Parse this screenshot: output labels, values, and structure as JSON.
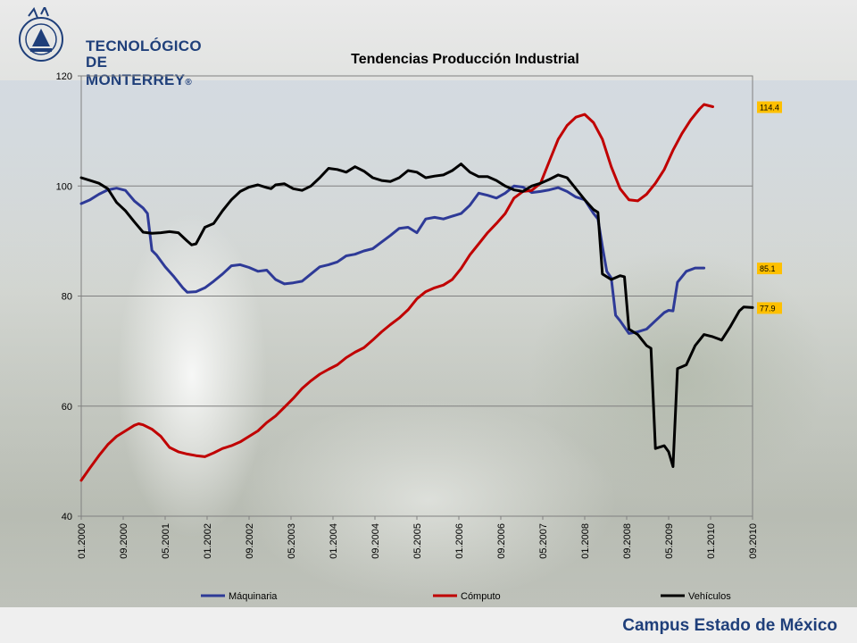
{
  "header": {
    "logo_line1": "TECNOLÓGICO",
    "logo_line2": "DE MONTERREY",
    "logo_mark": "®"
  },
  "footer": {
    "campus": "Campus Estado de México"
  },
  "chart_data": {
    "type": "line",
    "title": "Tendencias Producción Industrial",
    "xlabel": "",
    "ylabel": "",
    "ylim": [
      40,
      120
    ],
    "yticks": [
      40,
      60,
      80,
      100,
      120
    ],
    "grid": true,
    "legend_position": "bottom",
    "xtick_labels": [
      "01.2000",
      "09.2000",
      "05.2001",
      "01.2002",
      "09.2002",
      "05.2003",
      "01.2004",
      "09.2004",
      "05.2005",
      "01.2006",
      "09.2006",
      "05.2007",
      "01.2008",
      "09.2008",
      "05.2009",
      "01.2010",
      "09.2010"
    ],
    "x_index_range": [
      0,
      128
    ],
    "series": [
      {
        "name": "Máquinaria",
        "color": "#2e3a97",
        "end_label": "85.1",
        "values": [
          [
            0,
            96.8
          ],
          [
            2,
            97.5
          ],
          [
            4,
            98.5
          ],
          [
            6,
            99.3
          ],
          [
            8,
            99.6
          ],
          [
            10,
            99.2
          ],
          [
            12,
            97.3
          ],
          [
            14,
            96
          ],
          [
            15,
            95
          ],
          [
            16,
            88.3
          ],
          [
            17,
            87.5
          ],
          [
            19,
            85.3
          ],
          [
            21,
            83.5
          ],
          [
            23,
            81.5
          ],
          [
            24,
            80.7
          ],
          [
            26,
            80.8
          ],
          [
            28,
            81.5
          ],
          [
            30,
            82.7
          ],
          [
            32,
            84
          ],
          [
            34,
            85.5
          ],
          [
            36,
            85.7
          ],
          [
            38,
            85.2
          ],
          [
            40,
            84.5
          ],
          [
            42,
            84.7
          ],
          [
            44,
            83
          ],
          [
            46,
            82.2
          ],
          [
            48,
            82.4
          ],
          [
            50,
            82.7
          ],
          [
            52,
            84
          ],
          [
            54,
            85.3
          ],
          [
            56,
            85.7
          ],
          [
            58,
            86.2
          ],
          [
            60,
            87.3
          ],
          [
            62,
            87.6
          ],
          [
            64,
            88.2
          ],
          [
            66,
            88.6
          ],
          [
            68,
            89.8
          ],
          [
            70,
            91
          ],
          [
            72,
            92.3
          ],
          [
            74,
            92.5
          ],
          [
            76,
            91.5
          ],
          [
            78,
            94
          ],
          [
            80,
            94.3
          ],
          [
            82,
            94
          ],
          [
            84,
            94.5
          ],
          [
            86,
            95
          ],
          [
            88,
            96.5
          ],
          [
            90,
            98.7
          ],
          [
            92,
            98.3
          ],
          [
            94,
            97.8
          ],
          [
            96,
            98.7
          ],
          [
            98,
            100
          ],
          [
            100,
            99.8
          ],
          [
            102,
            98.8
          ],
          [
            104,
            99
          ],
          [
            106,
            99.3
          ],
          [
            108,
            99.7
          ],
          [
            110,
            99
          ],
          [
            112,
            98
          ],
          [
            114,
            97.5
          ],
          [
            116,
            95
          ],
          [
            117,
            94
          ],
          [
            118,
            89
          ],
          [
            119,
            84.5
          ],
          [
            120,
            83.3
          ],
          [
            121,
            76.5
          ],
          [
            122,
            75.5
          ],
          [
            124,
            73.2
          ],
          [
            126,
            73.5
          ],
          [
            128,
            74
          ],
          [
            130,
            75.5
          ],
          [
            132,
            77
          ],
          [
            133,
            77.4
          ],
          [
            134,
            77.3
          ],
          [
            135,
            82.5
          ],
          [
            137,
            84.5
          ],
          [
            139,
            85.1
          ],
          [
            141,
            85.1
          ]
        ]
      },
      {
        "name": "Cómputo",
        "color": "#c00000",
        "end_label": "114.4",
        "values": [
          [
            0,
            46.5
          ],
          [
            2,
            48.8
          ],
          [
            4,
            51
          ],
          [
            6,
            53
          ],
          [
            8,
            54.5
          ],
          [
            10,
            55.5
          ],
          [
            12,
            56.5
          ],
          [
            13,
            56.8
          ],
          [
            14,
            56.6
          ],
          [
            16,
            55.8
          ],
          [
            18,
            54.5
          ],
          [
            20,
            52.5
          ],
          [
            22,
            51.7
          ],
          [
            24,
            51.3
          ],
          [
            26,
            51
          ],
          [
            28,
            50.8
          ],
          [
            30,
            51.5
          ],
          [
            32,
            52.3
          ],
          [
            34,
            52.8
          ],
          [
            36,
            53.5
          ],
          [
            38,
            54.5
          ],
          [
            40,
            55.5
          ],
          [
            42,
            57
          ],
          [
            44,
            58.2
          ],
          [
            46,
            59.8
          ],
          [
            48,
            61.4
          ],
          [
            50,
            63.2
          ],
          [
            52,
            64.6
          ],
          [
            54,
            65.8
          ],
          [
            56,
            66.7
          ],
          [
            58,
            67.5
          ],
          [
            60,
            68.8
          ],
          [
            62,
            69.8
          ],
          [
            64,
            70.6
          ],
          [
            66,
            72
          ],
          [
            68,
            73.5
          ],
          [
            70,
            74.8
          ],
          [
            72,
            76
          ],
          [
            74,
            77.5
          ],
          [
            76,
            79.5
          ],
          [
            78,
            80.8
          ],
          [
            80,
            81.5
          ],
          [
            82,
            82
          ],
          [
            84,
            83
          ],
          [
            86,
            85
          ],
          [
            88,
            87.5
          ],
          [
            90,
            89.5
          ],
          [
            92,
            91.5
          ],
          [
            94,
            93.2
          ],
          [
            96,
            95
          ],
          [
            98,
            97.8
          ],
          [
            100,
            99
          ],
          [
            102,
            99.2
          ],
          [
            104,
            100.5
          ],
          [
            106,
            104.5
          ],
          [
            108,
            108.5
          ],
          [
            110,
            111
          ],
          [
            112,
            112.5
          ],
          [
            114,
            113
          ],
          [
            116,
            111.5
          ],
          [
            118,
            108.5
          ],
          [
            120,
            103.5
          ],
          [
            122,
            99.5
          ],
          [
            124,
            97.5
          ],
          [
            126,
            97.3
          ],
          [
            128,
            98.5
          ],
          [
            130,
            100.5
          ],
          [
            132,
            103
          ],
          [
            134,
            106.5
          ],
          [
            136,
            109.5
          ],
          [
            138,
            112
          ],
          [
            140,
            114
          ],
          [
            141,
            114.8
          ],
          [
            143,
            114.4
          ]
        ]
      },
      {
        "name": "Vehículos",
        "color": "#000000",
        "end_label": "77.9",
        "values": [
          [
            0,
            101.5
          ],
          [
            2,
            101
          ],
          [
            4,
            100.5
          ],
          [
            6,
            99.5
          ],
          [
            8,
            97
          ],
          [
            10,
            95.5
          ],
          [
            12,
            93.5
          ],
          [
            14,
            91.6
          ],
          [
            16,
            91.4
          ],
          [
            18,
            91.5
          ],
          [
            20,
            91.7
          ],
          [
            22,
            91.5
          ],
          [
            24,
            90
          ],
          [
            25,
            89.3
          ],
          [
            26,
            89.5
          ],
          [
            28,
            92.5
          ],
          [
            30,
            93.2
          ],
          [
            32,
            95.5
          ],
          [
            34,
            97.5
          ],
          [
            36,
            99
          ],
          [
            38,
            99.8
          ],
          [
            40,
            100.2
          ],
          [
            42,
            99.7
          ],
          [
            43,
            99.5
          ],
          [
            44,
            100.2
          ],
          [
            46,
            100.4
          ],
          [
            48,
            99.5
          ],
          [
            50,
            99.2
          ],
          [
            52,
            100
          ],
          [
            54,
            101.5
          ],
          [
            56,
            103.2
          ],
          [
            58,
            103
          ],
          [
            60,
            102.5
          ],
          [
            62,
            103.5
          ],
          [
            64,
            102.7
          ],
          [
            66,
            101.5
          ],
          [
            68,
            101
          ],
          [
            70,
            100.8
          ],
          [
            72,
            101.5
          ],
          [
            74,
            102.8
          ],
          [
            76,
            102.5
          ],
          [
            78,
            101.5
          ],
          [
            80,
            101.8
          ],
          [
            82,
            102
          ],
          [
            84,
            102.8
          ],
          [
            86,
            104
          ],
          [
            88,
            102.5
          ],
          [
            90,
            101.7
          ],
          [
            92,
            101.7
          ],
          [
            94,
            101
          ],
          [
            96,
            100
          ],
          [
            98,
            99.3
          ],
          [
            100,
            99
          ],
          [
            102,
            100
          ],
          [
            104,
            100.5
          ],
          [
            106,
            101.2
          ],
          [
            108,
            102
          ],
          [
            110,
            101.5
          ],
          [
            112,
            99.5
          ],
          [
            114,
            97.5
          ],
          [
            116,
            95.7
          ],
          [
            117,
            95.2
          ],
          [
            118,
            84
          ],
          [
            120,
            83
          ],
          [
            122,
            83.7
          ],
          [
            123,
            83.5
          ],
          [
            124,
            74
          ],
          [
            126,
            73
          ],
          [
            128,
            71
          ],
          [
            129,
            70.5
          ],
          [
            130,
            52.3
          ],
          [
            132,
            52.8
          ],
          [
            133,
            51.7
          ],
          [
            134,
            49
          ],
          [
            135,
            66.8
          ],
          [
            137,
            67.5
          ],
          [
            139,
            71
          ],
          [
            141,
            73
          ],
          [
            143,
            72.6
          ],
          [
            145,
            72
          ],
          [
            147,
            74.5
          ],
          [
            149,
            77.3
          ],
          [
            150,
            78
          ],
          [
            152,
            77.9
          ]
        ]
      }
    ]
  }
}
